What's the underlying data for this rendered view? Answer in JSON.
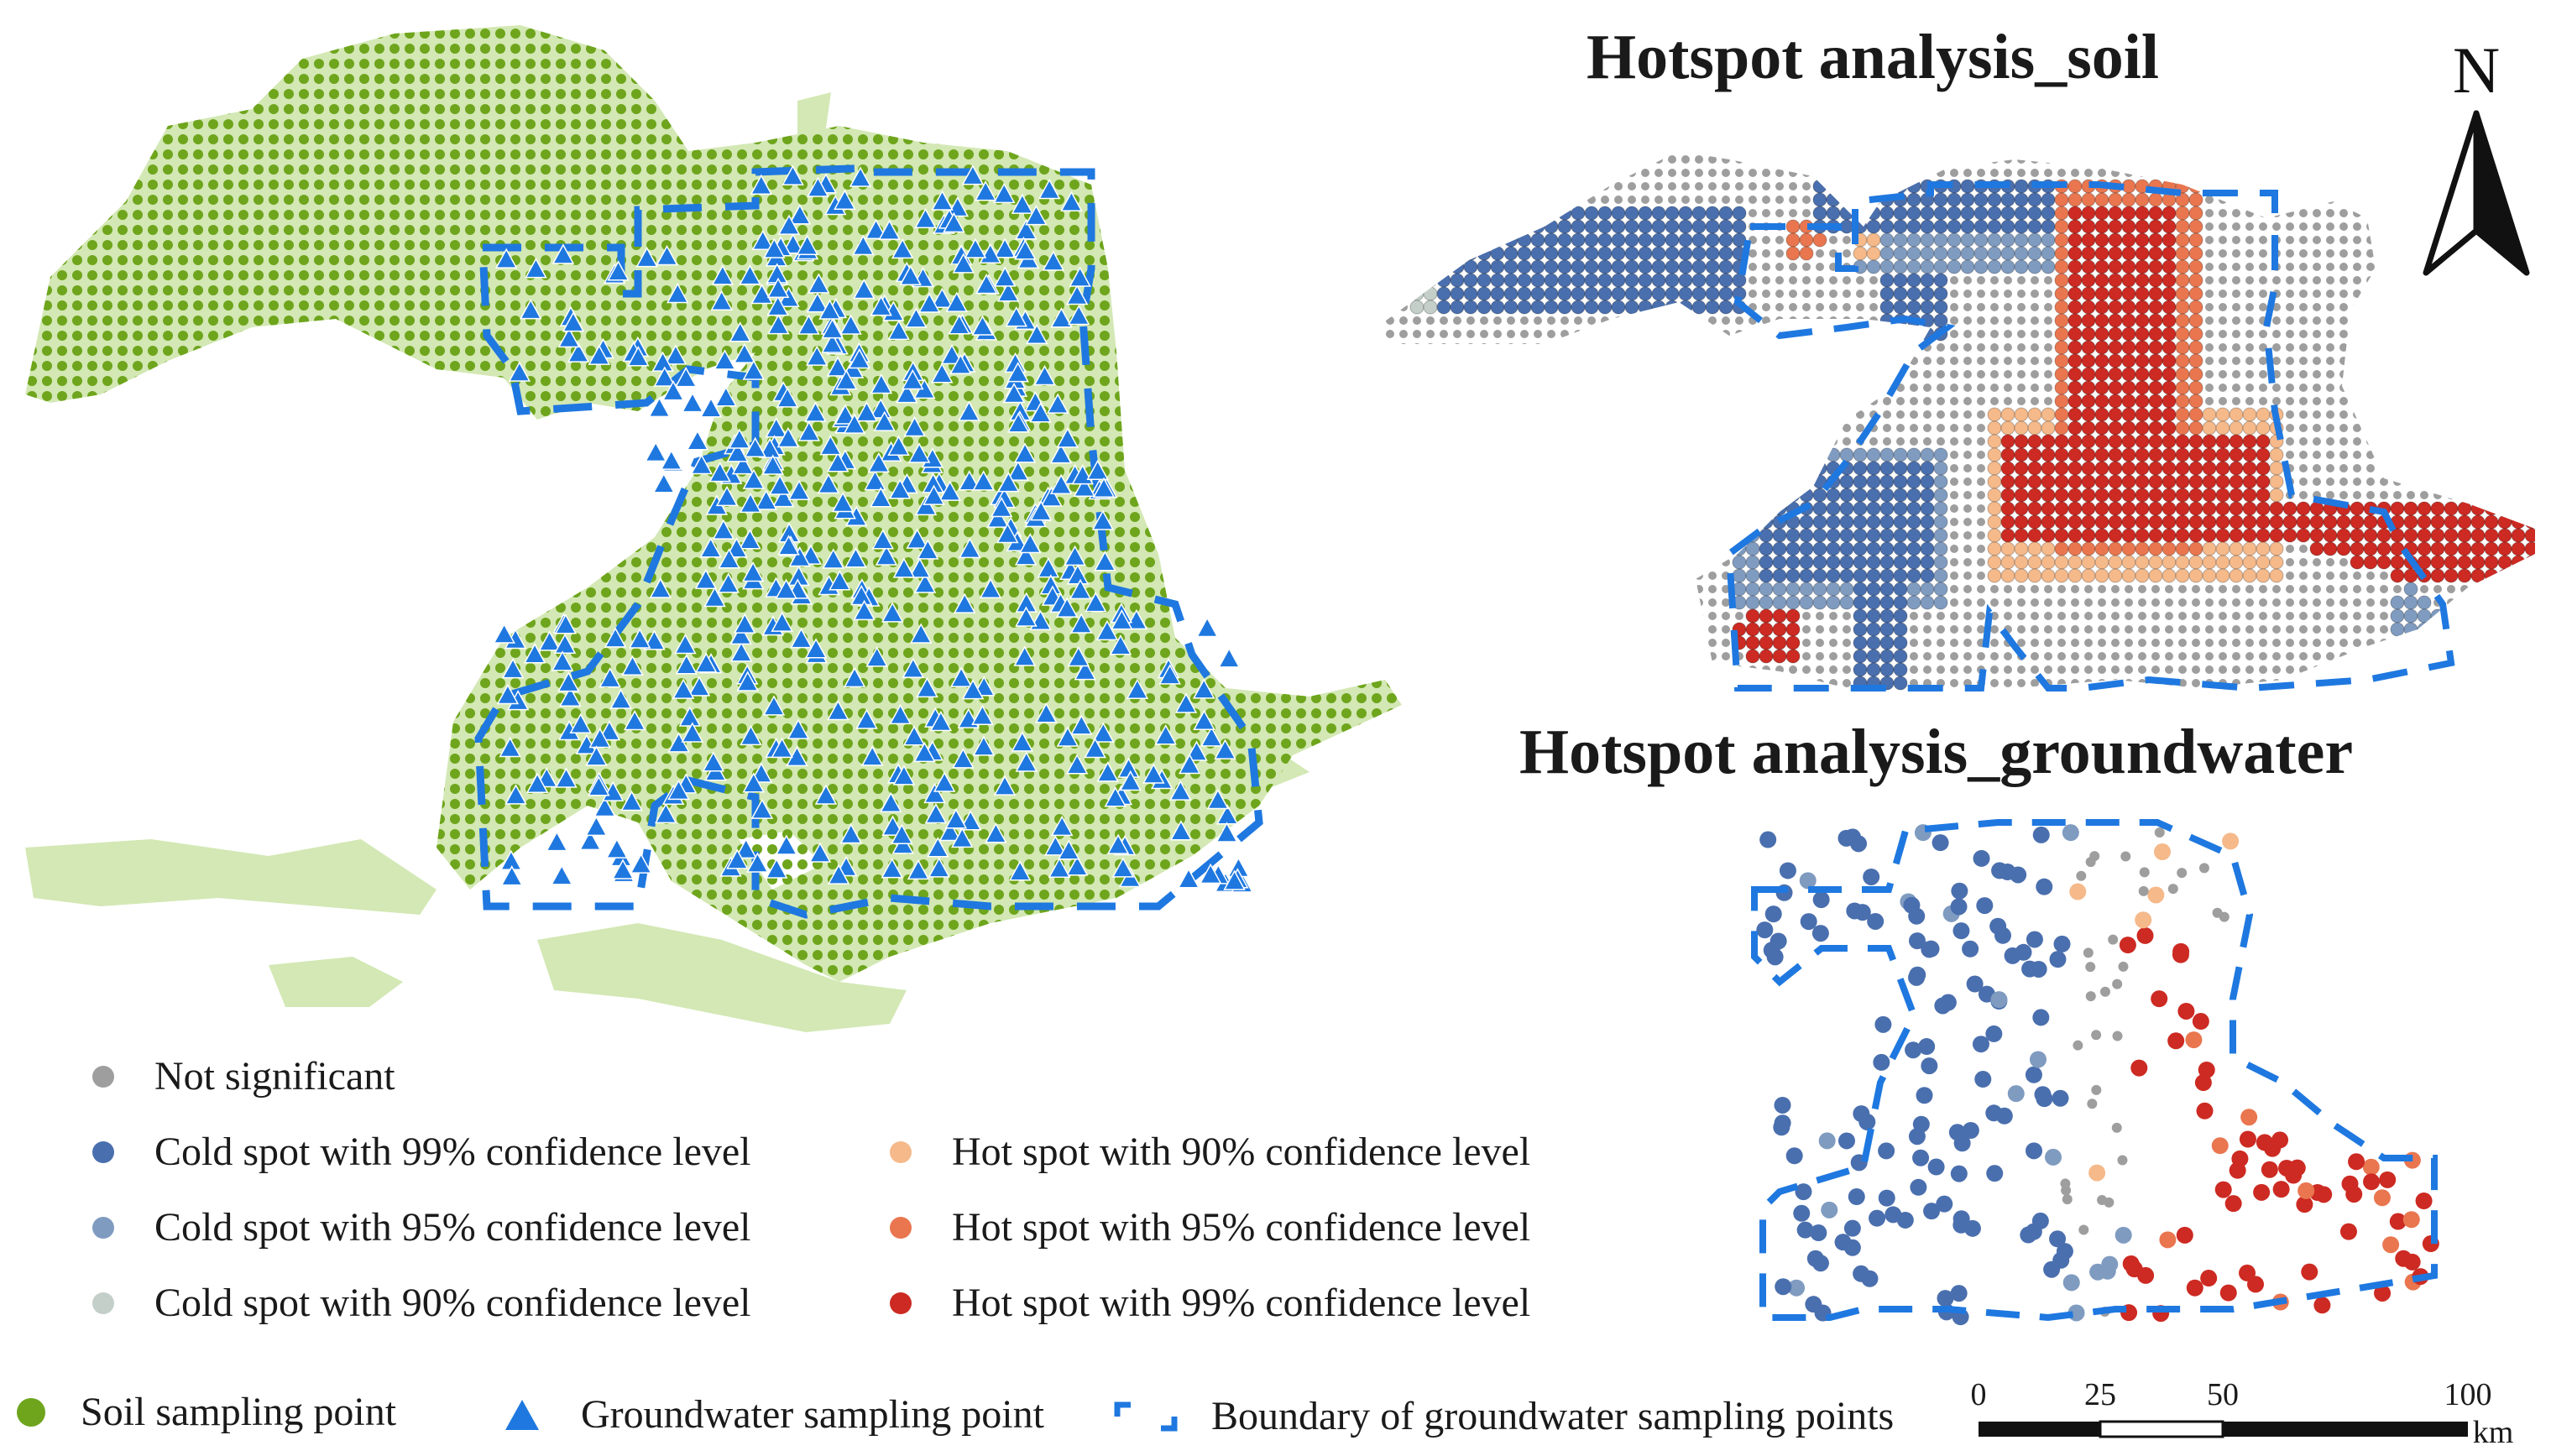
{
  "titles": {
    "soil": "Hotspot analysis_soil",
    "groundwater": "Hotspot analysis_groundwater"
  },
  "north_arrow": {
    "label": "N",
    "icon": "north-arrow-icon"
  },
  "classes": {
    "not_significant": {
      "label": "Not significant",
      "color": "#9e9e9e"
    },
    "cold99": {
      "label": "Cold spot with 99% confidence level",
      "color": "#4a6fae"
    },
    "cold95": {
      "label": "Cold spot with 95% confidence level",
      "color": "#7f9bc0"
    },
    "cold90": {
      "label": "Cold spot with 90% confidence level",
      "color": "#c3cfc8"
    },
    "hot90": {
      "label": "Hot spot with 90% confidence level",
      "color": "#f5b98a"
    },
    "hot95": {
      "label": "Hot spot with 95% confidence level",
      "color": "#e9764f"
    },
    "hot99": {
      "label": "Hot spot with 99% confidence level",
      "color": "#cc2a22"
    }
  },
  "bottom_legend": {
    "soil_point": {
      "label": "Soil sampling point",
      "color": "#6ea51c",
      "icon": "green-dot-icon"
    },
    "groundwater_point": {
      "label": "Groundwater sampling point",
      "color": "#1f78e0",
      "icon": "blue-triangle-icon"
    },
    "boundary": {
      "label": "Boundary of groundwater sampling points",
      "color": "#1f78e0",
      "icon": "dashed-bracket-icon"
    }
  },
  "scale_bar": {
    "unit": "km",
    "ticks": [
      "0",
      "25",
      "50",
      "100"
    ]
  },
  "colors": {
    "land": "#d3e8b4",
    "soil_point": "#6ea51c",
    "gw_point": "#1f78e0",
    "boundary": "#1f78e0"
  }
}
